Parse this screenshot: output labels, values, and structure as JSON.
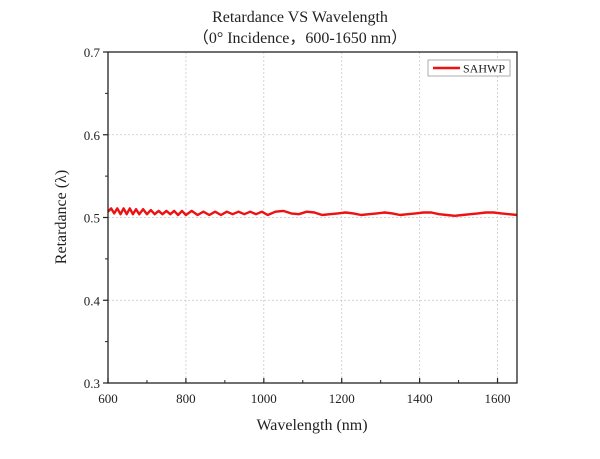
{
  "chart_data": {
    "type": "line",
    "title": "Retardance VS Wavelength",
    "subtitle": "（0° Incidence，600-1650 nm）",
    "xlabel": "Wavelength (nm)",
    "ylabel": "Retardance (λ)",
    "xlim": [
      600,
      1650
    ],
    "ylim": [
      0.3,
      0.7
    ],
    "xticks": [
      600,
      800,
      1000,
      1200,
      1400,
      1600
    ],
    "xtick_labels": [
      "600",
      "800",
      "1000",
      "1200",
      "1400",
      "1600"
    ],
    "yticks": [
      0.3,
      0.4,
      0.5,
      0.6,
      0.7
    ],
    "ytick_labels": [
      "0.3",
      "0.4",
      "0.5",
      "0.6",
      "0.7"
    ],
    "grid": true,
    "legend_position": "top-right",
    "series": [
      {
        "name": "SAHWP",
        "color": "#ee1111",
        "x": [
          600,
          608,
          616,
          624,
          632,
          640,
          648,
          656,
          664,
          672,
          680,
          690,
          700,
          710,
          720,
          730,
          740,
          750,
          760,
          770,
          780,
          790,
          800,
          815,
          830,
          845,
          860,
          875,
          890,
          905,
          920,
          935,
          950,
          965,
          980,
          995,
          1010,
          1030,
          1050,
          1070,
          1090,
          1110,
          1130,
          1150,
          1170,
          1190,
          1210,
          1230,
          1250,
          1270,
          1290,
          1310,
          1330,
          1350,
          1370,
          1390,
          1410,
          1430,
          1450,
          1470,
          1490,
          1510,
          1530,
          1550,
          1570,
          1590,
          1610,
          1630,
          1650
        ],
        "y": [
          0.507,
          0.511,
          0.505,
          0.511,
          0.504,
          0.511,
          0.504,
          0.511,
          0.504,
          0.51,
          0.504,
          0.51,
          0.504,
          0.509,
          0.504,
          0.508,
          0.504,
          0.508,
          0.504,
          0.508,
          0.503,
          0.508,
          0.503,
          0.508,
          0.503,
          0.507,
          0.503,
          0.507,
          0.503,
          0.507,
          0.504,
          0.507,
          0.504,
          0.507,
          0.504,
          0.507,
          0.503,
          0.507,
          0.508,
          0.505,
          0.504,
          0.507,
          0.506,
          0.503,
          0.504,
          0.505,
          0.506,
          0.505,
          0.503,
          0.504,
          0.505,
          0.506,
          0.505,
          0.503,
          0.504,
          0.505,
          0.506,
          0.506,
          0.504,
          0.503,
          0.502,
          0.503,
          0.504,
          0.505,
          0.506,
          0.506,
          0.505,
          0.504,
          0.503
        ]
      }
    ]
  }
}
